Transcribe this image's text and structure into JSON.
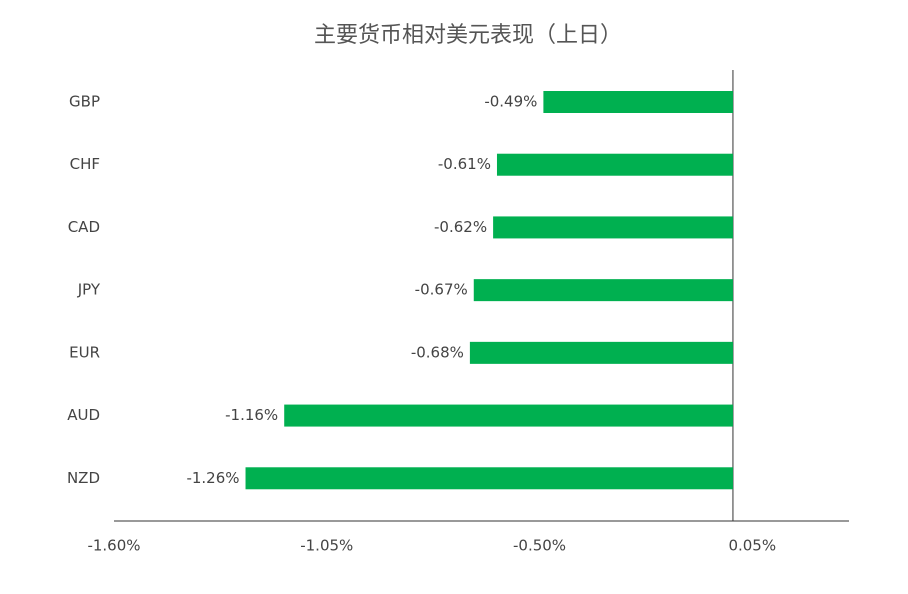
{
  "chart_data": {
    "type": "hbar",
    "title": "主要货币相对美元表现（上日）",
    "categories": [
      "GBP",
      "CHF",
      "CAD",
      "JPY",
      "EUR",
      "AUD",
      "NZD"
    ],
    "values": [
      -0.49,
      -0.61,
      -0.62,
      -0.67,
      -0.68,
      -1.16,
      -1.26
    ],
    "value_labels": [
      "-0.49%",
      "-0.61%",
      "-0.62%",
      "-0.67%",
      "-0.68%",
      "-1.16%",
      "-1.26%"
    ],
    "color": "#00b050",
    "xlim": [
      -1.6,
      0.3
    ],
    "xticks": [
      {
        "value": -1.6,
        "label": "-1.60%"
      },
      {
        "value": -1.05,
        "label": "-1.05%"
      },
      {
        "value": -0.5,
        "label": "-0.50%"
      },
      {
        "value": 0.05,
        "label": "0.05%"
      }
    ]
  }
}
